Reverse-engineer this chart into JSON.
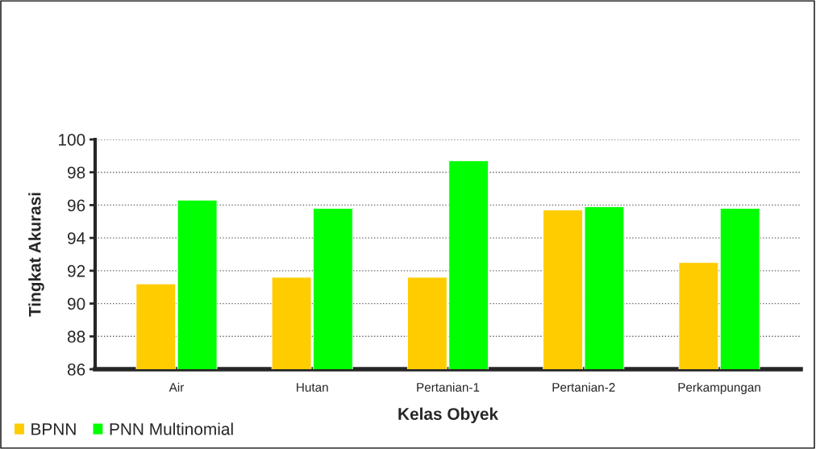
{
  "chart_data": {
    "type": "bar",
    "xlabel": "Kelas Obyek",
    "ylabel": "Tingkat Akurasi",
    "categories": [
      "Air",
      "Hutan",
      "Pertanian-1",
      "Pertanian-2",
      "Perkampungan"
    ],
    "series": [
      {
        "name": "BPNN",
        "color": "#ffcc00",
        "values": [
          91.2,
          91.6,
          91.6,
          95.7,
          92.5
        ]
      },
      {
        "name": "PNN Multinomial",
        "color": "#00ff00",
        "values": [
          96.3,
          95.8,
          98.7,
          95.9,
          95.8
        ]
      }
    ],
    "ylim": [
      86,
      100
    ],
    "yticks": [
      86,
      88,
      90,
      92,
      94,
      96,
      98,
      100
    ],
    "grid": "y",
    "legend": "bottom left"
  }
}
